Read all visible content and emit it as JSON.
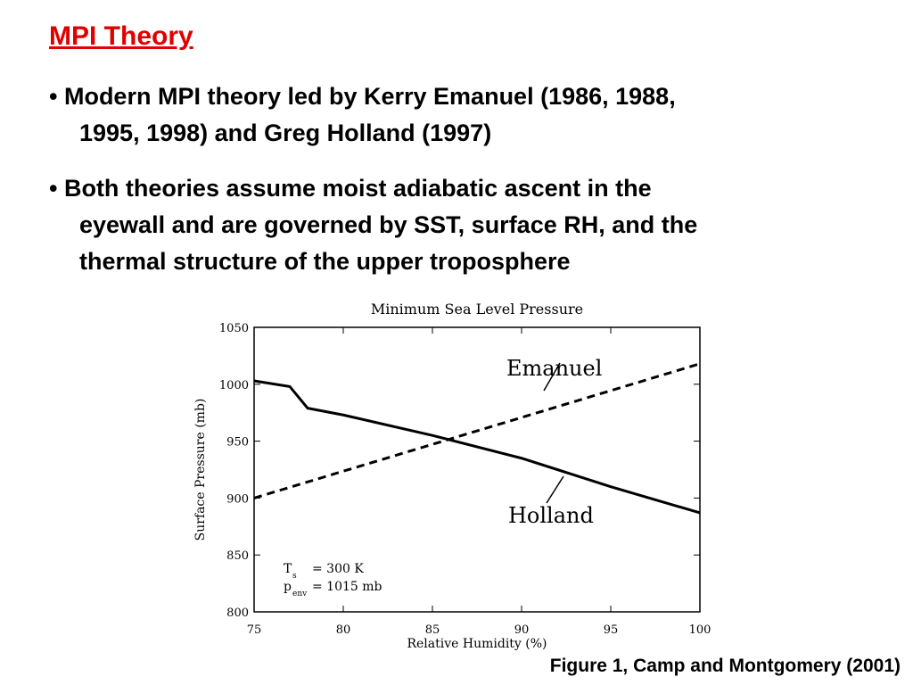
{
  "title": "MPI Theory",
  "bullets": [
    {
      "lines": [
        "• Modern MPI theory led by Kerry Emanuel (1986, 1988,",
        "1995, 1998) and Greg Holland (1997)"
      ]
    },
    {
      "lines": [
        "• Both theories assume moist adiabatic ascent in the",
        "eyewall and are governed by SST, surface RH, and the",
        "thermal structure of the upper troposphere"
      ]
    }
  ],
  "caption": "Figure 1, Camp and Montgomery (2001)",
  "chart_data": {
    "type": "line",
    "title": "Minimum Sea Level Pressure",
    "x_label": "Relative Humidity (%)",
    "y_label": "Surface Pressure (mb)",
    "xlim": [
      75,
      100
    ],
    "xticks": [
      75,
      80,
      85,
      90,
      95,
      100
    ],
    "ylim": [
      800,
      1050
    ],
    "yticks": [
      800,
      850,
      900,
      950,
      1000,
      1050
    ],
    "series": [
      {
        "name": "Emanuel",
        "color": "#000000",
        "dashed": true,
        "x": [
          75,
          100
        ],
        "values": [
          900,
          1018
        ]
      },
      {
        "name": "Holland",
        "color": "#000000",
        "dashed": false,
        "x": [
          75,
          77,
          78,
          80,
          85,
          90,
          95,
          100
        ],
        "values": [
          1003,
          998,
          979,
          973,
          955,
          935,
          910,
          887
        ]
      }
    ],
    "annotations": [
      {
        "symbol": "T",
        "sub": "s",
        "text": "= 300 K"
      },
      {
        "symbol": "p",
        "sub": "env",
        "text": "= 1015 mb"
      }
    ]
  }
}
